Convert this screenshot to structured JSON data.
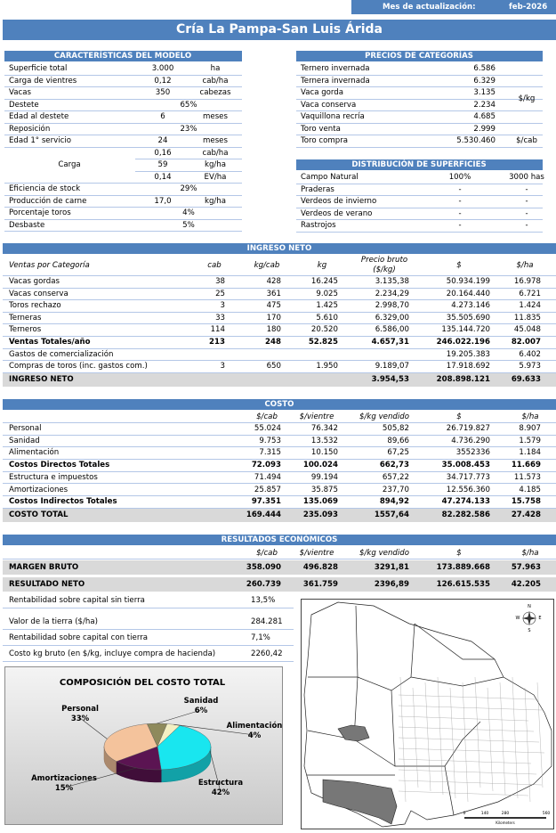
{
  "header": {
    "label": "Mes de actualización:",
    "month": "feb-2026",
    "title": "Cría La Pampa-San Luis Árida"
  },
  "modelo": {
    "title": "CARACTERÍSTICAS DEL MODELO",
    "rows_a": [
      [
        "Superficie total",
        "3.000",
        "ha"
      ],
      [
        "Carga de vientres",
        "0,12",
        "cab/ha"
      ],
      [
        "Vacas",
        "350",
        "cabezas"
      ],
      [
        "Destete",
        "65%",
        null
      ],
      [
        "Edad al destete",
        "6",
        "meses"
      ],
      [
        "Reposición",
        "23%",
        null
      ],
      [
        "Edad 1° servicio",
        "24",
        "meses"
      ]
    ],
    "carga": {
      "label": "Carga",
      "rows": [
        [
          "0,16",
          "cab/ha"
        ],
        [
          "59",
          "kg/ha"
        ],
        [
          "0,14",
          "EV/ha"
        ]
      ]
    },
    "rows_b": [
      [
        "Eficiencia de stock",
        "29%",
        null
      ],
      [
        "Producción de carne",
        "17,0",
        "kg/ha"
      ],
      [
        "Porcentaje toros",
        "4%",
        null
      ],
      [
        "Desbaste",
        "5%",
        null
      ]
    ]
  },
  "precios": {
    "title": "PRECIOS DE CATEGORÍAS",
    "unit": "$/kg",
    "rows": [
      [
        "Ternero invernada",
        "6.586"
      ],
      [
        "Ternera invernada",
        "6.329"
      ],
      [
        "Vaca gorda",
        "3.135"
      ],
      [
        "Vaca conserva",
        "2.234"
      ],
      [
        "Vaquillona recría",
        "4.685"
      ],
      [
        "Toro venta",
        "2.999"
      ],
      [
        "Toro compra",
        "5.530.460",
        "$/cab"
      ]
    ]
  },
  "distribucion": {
    "title": "DISTRIBUCIÓN DE SUPERFICIES",
    "rows": [
      [
        "Campo Natural",
        "100%",
        "3000 has"
      ],
      [
        "Praderas",
        "-",
        "-"
      ],
      [
        "Verdeos de invierno",
        "-",
        "-"
      ],
      [
        "Verdeos de verano",
        "-",
        "-"
      ],
      [
        "Rastrojos",
        "-",
        "-"
      ]
    ]
  },
  "ingreso": {
    "title": "INGRESO NETO",
    "headers": [
      "Ventas por Categoría",
      "cab",
      "kg/cab",
      "kg",
      "Precio bruto",
      "($/kg)",
      "$",
      "$/ha"
    ],
    "rows": [
      [
        "Vacas gordas",
        "38",
        "428",
        "16.245",
        "3.135,38",
        "50.934.199",
        "16.978"
      ],
      [
        "Vacas conserva",
        "25",
        "361",
        "9.025",
        "2.234,29",
        "20.164.440",
        "6.721"
      ],
      [
        "Toros rechazo",
        "3",
        "475",
        "1.425",
        "2.998,70",
        "4.273.146",
        "1.424"
      ],
      [
        "Terneras",
        "33",
        "170",
        "5.610",
        "6.329,00",
        "35.505.690",
        "11.835"
      ],
      [
        "Terneros",
        "114",
        "180",
        "20.520",
        "6.586,00",
        "135.144.720",
        "45.048"
      ],
      [
        "Ventas Totales/año",
        "213",
        "248",
        "52.825",
        "4.657,31",
        "246.022.196",
        "82.007"
      ],
      [
        "Gastos de comercialización",
        null,
        null,
        null,
        null,
        "19.205.383",
        "6.402"
      ],
      [
        "Compras de toros (inc. gastos com.)",
        "3",
        "650",
        "1.950",
        "9.189,07",
        "17.918.692",
        "5.973"
      ]
    ],
    "total": [
      "INGRESO NETO",
      null,
      null,
      null,
      "3.954,53",
      "208.898.121",
      "69.633"
    ]
  },
  "costo": {
    "title": "COSTO",
    "headers": [
      "$/cab",
      "$/vientre",
      "$/kg vendido",
      "$",
      "$/ha"
    ],
    "rows": [
      [
        "Personal",
        "55.024",
        "76.342",
        "505,82",
        "26.719.827",
        "8.907"
      ],
      [
        "Sanidad",
        "9.753",
        "13.532",
        "89,66",
        "4.736.290",
        "1.579"
      ],
      [
        "Alimentación",
        "7.315",
        "10.150",
        "67,25",
        "3552336",
        "1.184"
      ],
      [
        "Costos Directos Totales",
        "72.093",
        "100.024",
        "662,73",
        "35.008.453",
        "11.669"
      ],
      [
        "Estructura e impuestos",
        "71.494",
        "99.194",
        "657,22",
        "34.717.773",
        "11.573"
      ],
      [
        "Amortizaciones",
        "25.857",
        "35.875",
        "237,70",
        "12.556.360",
        "4.185"
      ],
      [
        "Costos Indirectos Totales",
        "97.351",
        "135.069",
        "894,92",
        "47.274.133",
        "15.758"
      ]
    ],
    "total": [
      "COSTO TOTAL",
      "169.444",
      "235.093",
      "1557,64",
      "82.282.586",
      "27.428"
    ]
  },
  "resultados": {
    "title": "RESULTADOS ECONÓMICOS",
    "headers": [
      "$/cab",
      "$/vientre",
      "$/kg vendido",
      "$",
      "$/ha"
    ],
    "rows": [
      [
        "MARGEN BRUTO",
        "358.090",
        "496.828",
        "3291,81",
        "173.889.668",
        "57.963"
      ],
      [
        "RESULTADO NETO",
        "260.739",
        "361.759",
        "2396,89",
        "126.615.535",
        "42.205"
      ]
    ],
    "extra": [
      [
        "Rentabilidad sobre capital sin tierra",
        "13,5%"
      ],
      [
        "Valor de la tierra ($/ha)",
        "284.281"
      ],
      [
        "Rentabilidad sobre capital con tierra",
        "7,1%"
      ],
      [
        "Costo kg bruto (en $/kg, incluye compra de hacienda)",
        "2260,42"
      ]
    ]
  },
  "chart_data": {
    "type": "pie",
    "title": "COMPOSICIÓN DEL COSTO TOTAL",
    "categories": [
      "Personal",
      "Sanidad",
      "Alimentación",
      "Estructura",
      "Amortizaciones"
    ],
    "values": [
      33,
      6,
      4,
      42,
      15
    ],
    "value_labels": [
      "33%",
      "6%",
      "4%",
      "42%",
      "15%"
    ],
    "colors": [
      "#f4c39c",
      "#8e8a5c",
      "#f3efc2",
      "#19e6ef",
      "#5b1452"
    ],
    "three_d": true
  },
  "map": {
    "compass": [
      "N",
      "E",
      "S",
      "W"
    ],
    "scale": [
      "0",
      "140",
      "280",
      "560"
    ],
    "unit": "Kilometers"
  }
}
